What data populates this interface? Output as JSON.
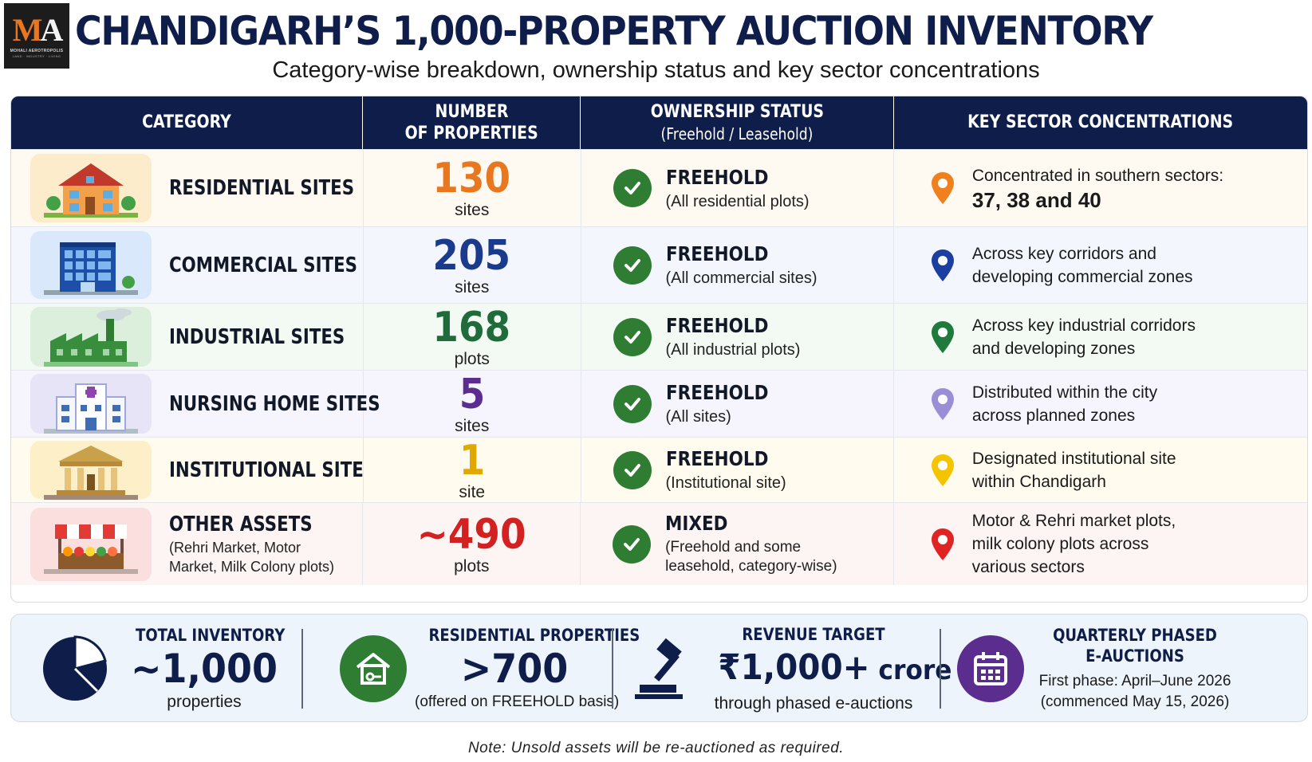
{
  "header": {
    "logo_mark_m": "M",
    "logo_mark_a": "A",
    "logo_name": "MOHALI AEROTROPOLIS",
    "logo_tagline": "LAND · INDUSTRY · LIVING",
    "title": "CHANDIGARH’S 1,000-PROPERTY AUCTION INVENTORY",
    "subtitle": "Category-wise breakdown, ownership status and key sector concentrations"
  },
  "table": {
    "columns": {
      "category": "CATEGORY",
      "number_line1": "NUMBER",
      "number_line2": "OF PROPERTIES",
      "ownership_line1": "OWNERSHIP STATUS",
      "ownership_line2": "(Freehold / Leasehold)",
      "sectors": "KEY SECTOR CONCENTRATIONS"
    },
    "rows": [
      {
        "name": "RESIDENTIAL SITES",
        "note": "",
        "count": "130",
        "unit": "sites",
        "count_color": "#e8771f",
        "ownership": "FREEHOLD",
        "ownership_note": "(All residential plots)",
        "sector_text": "Concentrated in southern sectors:",
        "sector_strong": "37, 38 and 40",
        "pin_color": "#f07f1d",
        "icon": "house-icon",
        "bg": "#fffaf1"
      },
      {
        "name": "COMMERCIAL SITES",
        "note": "",
        "count": "205",
        "unit": "sites",
        "count_color": "#1a3a8c",
        "ownership": "FREEHOLD",
        "ownership_note": "(All commercial sites)",
        "sector_text": "Across key corridors and developing commercial zones",
        "sector_strong": "",
        "pin_color": "#1b3fa0",
        "icon": "office-building-icon",
        "bg": "#f3f7fd"
      },
      {
        "name": "INDUSTRIAL SITES",
        "note": "",
        "count": "168",
        "unit": "plots",
        "count_color": "#1f6b3a",
        "ownership": "FREEHOLD",
        "ownership_note": "(All industrial plots)",
        "sector_text": "Across key industrial corridors and developing zones",
        "sector_strong": "",
        "pin_color": "#1f7a3c",
        "icon": "factory-icon",
        "bg": "#f3f9f3"
      },
      {
        "name": "NURSING HOME SITES",
        "note": "",
        "count": "5",
        "unit": "sites",
        "count_color": "#5b2d8e",
        "ownership": "FREEHOLD",
        "ownership_note": "(All sites)",
        "sector_text": "Distributed within the city across planned zones",
        "sector_strong": "",
        "pin_color": "#9a8fd6",
        "icon": "hospital-icon",
        "bg": "#f6f4fc"
      },
      {
        "name": "INSTITUTIONAL SITE",
        "note": "",
        "count": "1",
        "unit": "site",
        "count_color": "#e0a800",
        "ownership": "FREEHOLD",
        "ownership_note": "(Institutional site)",
        "sector_text": "Designated institutional site within Chandigarh",
        "sector_strong": "",
        "pin_color": "#f5c400",
        "icon": "institution-icon",
        "bg": "#fffbef"
      },
      {
        "name": "OTHER ASSETS",
        "note": "(Rehri Market, Motor Market, Milk Colony plots)",
        "count": "~490",
        "unit": "plots",
        "count_color": "#d32020",
        "ownership": "MIXED",
        "ownership_note": "(Freehold and some leasehold, category-wise)",
        "sector_text": "Motor & Rehri market plots, milk colony plots across various sectors",
        "sector_strong": "",
        "pin_color": "#e02424",
        "icon": "market-stall-icon",
        "bg": "#fdf4f4"
      }
    ]
  },
  "summary": {
    "total_label": "TOTAL INVENTORY",
    "total_value": "~1,000",
    "total_sub": "properties",
    "residential_label": "RESIDENTIAL PROPERTIES",
    "residential_value": ">700",
    "residential_sub": "(offered on FREEHOLD basis)",
    "revenue_label": "REVENUE TARGET",
    "revenue_value": "₹1,000+",
    "revenue_suffix": " crore",
    "revenue_sub": "through phased e-auctions",
    "quarterly_label_line1": "QUARTERLY PHASED",
    "quarterly_label_line2": "E-AUCTIONS",
    "quarterly_line1": "First phase: April–June 2026",
    "quarterly_line2": "(commenced May 15, 2026)"
  },
  "footnote": "Note: Unsold assets will be re-auctioned as required."
}
